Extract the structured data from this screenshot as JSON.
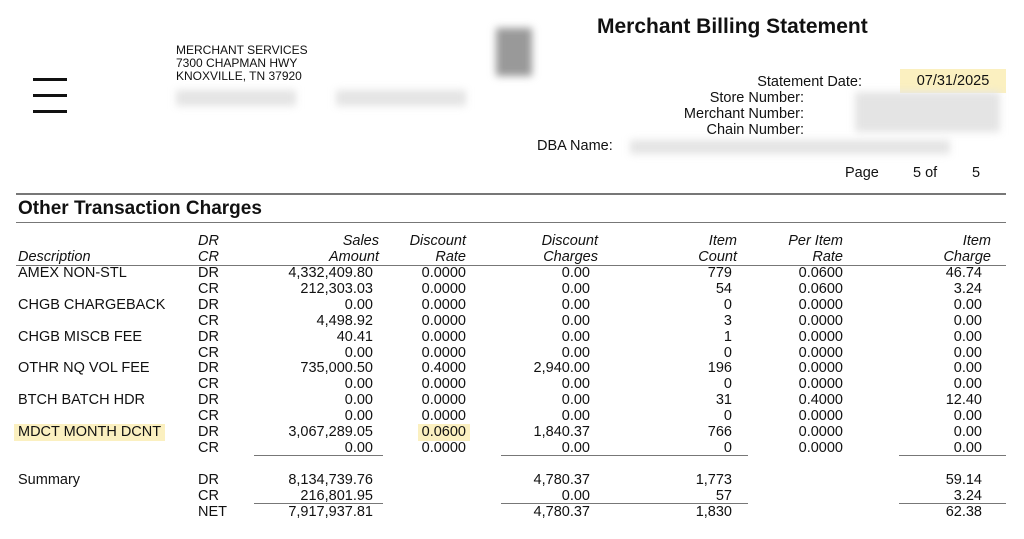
{
  "header": {
    "title": "Merchant Billing Statement",
    "address": [
      "MERCHANT SERVICES",
      "7300 CHAPMAN HWY",
      "KNOXVILLE, TN 37920"
    ],
    "statement_date_label": "Statement Date:",
    "statement_date": "07/31/2025",
    "store_number_label": "Store Number:",
    "merchant_number_label": "Merchant Number:",
    "chain_number_label": "Chain Number:",
    "dba_name_label": "DBA Name:",
    "page_label": "Page",
    "page_current": "5 of",
    "page_total": "5",
    "icons": {
      "menu": "hamburger-menu-icon"
    }
  },
  "section": {
    "title": "Other Transaction Charges",
    "columns": {
      "description": "Description",
      "drcr": [
        "DR",
        "CR"
      ],
      "sales_amount": [
        "Sales",
        "Amount"
      ],
      "discount_rate": [
        "Discount",
        "Rate"
      ],
      "discount_charges": [
        "Discount",
        "Charges"
      ],
      "item_count": [
        "Item",
        "Count"
      ],
      "per_item_rate": [
        "Per Item",
        "Rate"
      ],
      "item_charge": [
        "Item",
        "Charge"
      ]
    },
    "rows": [
      [
        "AMEX NON-STL",
        "DR",
        "4,332,409.80",
        "0.0000",
        "0.00",
        "779",
        "0.0600",
        "46.74"
      ],
      [
        "",
        "CR",
        "212,303.03",
        "0.0000",
        "0.00",
        "54",
        "0.0600",
        "3.24"
      ],
      [
        "CHGB CHARGEBACK",
        "DR",
        "0.00",
        "0.0000",
        "0.00",
        "0",
        "0.0000",
        "0.00"
      ],
      [
        "",
        "CR",
        "4,498.92",
        "0.0000",
        "0.00",
        "3",
        "0.0000",
        "0.00"
      ],
      [
        "CHGB MISCB FEE",
        "DR",
        "40.41",
        "0.0000",
        "0.00",
        "1",
        "0.0000",
        "0.00"
      ],
      [
        "",
        "CR",
        "0.00",
        "0.0000",
        "0.00",
        "0",
        "0.0000",
        "0.00"
      ],
      [
        "OTHR NQ VOL FEE",
        "DR",
        "735,000.50",
        "0.4000",
        "2,940.00",
        "196",
        "0.0000",
        "0.00"
      ],
      [
        "",
        "CR",
        "0.00",
        "0.0000",
        "0.00",
        "0",
        "0.0000",
        "0.00"
      ],
      [
        "BTCH BATCH HDR",
        "DR",
        "0.00",
        "0.0000",
        "0.00",
        "31",
        "0.4000",
        "12.40"
      ],
      [
        "",
        "CR",
        "0.00",
        "0.0000",
        "0.00",
        "0",
        "0.0000",
        "0.00"
      ],
      [
        "MDCT MONTH DCNT",
        "DR",
        "3,067,289.05",
        "0.0600",
        "1,840.37",
        "766",
        "0.0000",
        "0.00"
      ],
      [
        "",
        "CR",
        "0.00",
        "0.0000",
        "0.00",
        "0",
        "0.0000",
        "0.00"
      ]
    ],
    "summary": [
      [
        "Summary",
        "DR",
        "8,134,739.76",
        "",
        "4,780.37",
        "1,773",
        "",
        "59.14"
      ],
      [
        "",
        "CR",
        "216,801.95",
        "",
        "0.00",
        "57",
        "",
        "3.24"
      ],
      [
        "",
        "NET",
        "7,917,937.81",
        "",
        "4,780.37",
        "1,830",
        "",
        "62.38"
      ]
    ],
    "highlight_color": "#fbf0c0"
  }
}
